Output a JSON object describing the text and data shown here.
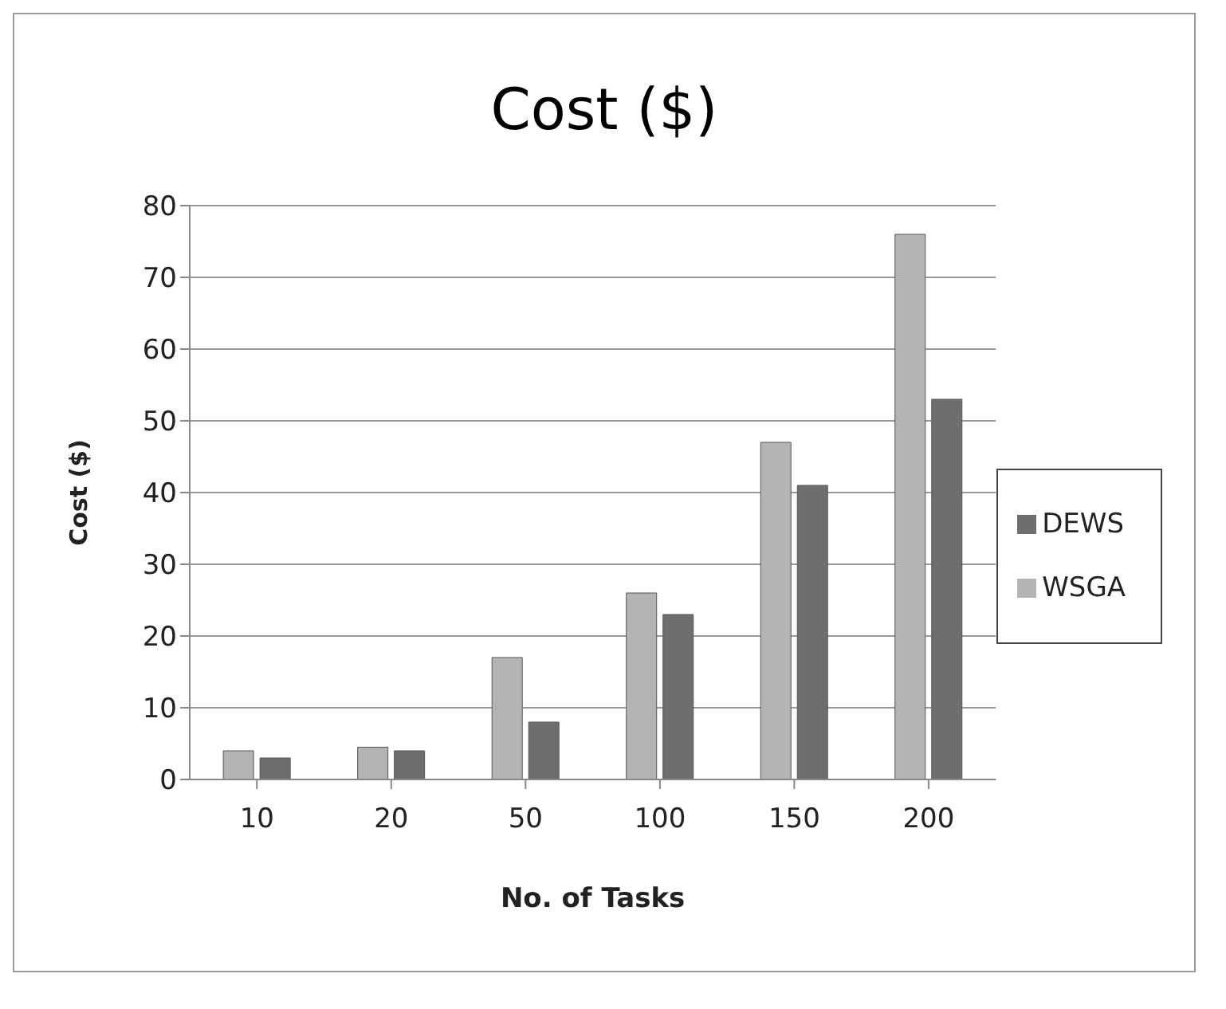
{
  "chart_data": {
    "type": "bar",
    "title": "Cost ($)",
    "xlabel": "No. of Tasks",
    "ylabel": "Cost ($)",
    "categories": [
      "10",
      "20",
      "50",
      "100",
      "150",
      "200"
    ],
    "series": [
      {
        "name": "WSGA",
        "color": "#b4b4b4",
        "values": [
          4,
          4.5,
          17,
          26,
          47,
          76
        ]
      },
      {
        "name": "DEWS",
        "color": "#6e6e6e",
        "values": [
          3,
          4,
          8,
          23,
          41,
          53
        ]
      }
    ],
    "ylim": [
      0,
      80
    ],
    "yticks": [
      0,
      10,
      20,
      30,
      40,
      50,
      60,
      70,
      80
    ],
    "grid": "y",
    "legend": "right"
  }
}
